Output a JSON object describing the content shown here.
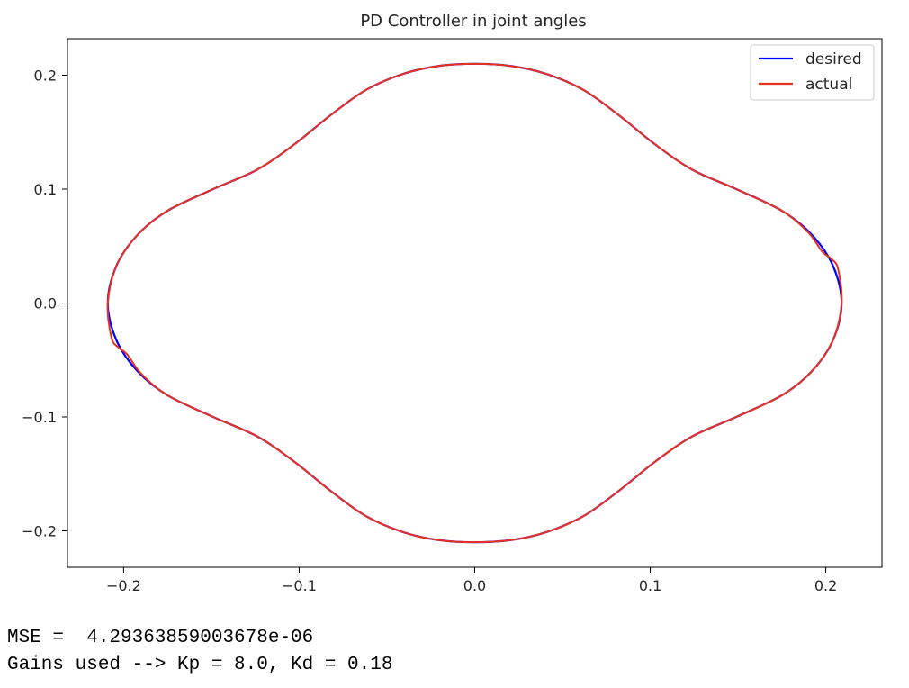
{
  "chart_data": {
    "type": "line",
    "title": "PD Controller in joint angles",
    "xlabel": "",
    "ylabel": "",
    "xlim": [
      -0.232,
      0.232
    ],
    "ylim": [
      -0.232,
      0.232
    ],
    "xticks": [
      -0.2,
      -0.1,
      0.0,
      0.1,
      0.2
    ],
    "xtick_labels": [
      "−0.2",
      "−0.1",
      "0.0",
      "0.1",
      "0.2"
    ],
    "yticks": [
      0.2,
      0.1,
      0.0,
      -0.1,
      -0.2
    ],
    "ytick_labels": [
      "0.2",
      "0.1",
      "0.0",
      "−0.1",
      "−0.2"
    ],
    "grid": false,
    "legend_position": "top-right",
    "series": [
      {
        "name": "desired",
        "color": "#0000ff",
        "x": [
          0.0,
          0.021,
          0.041,
          0.062,
          0.082,
          0.103,
          0.124,
          0.149,
          0.175,
          0.192,
          0.204,
          0.209,
          0.204,
          0.192,
          0.175,
          0.149,
          0.124,
          0.103,
          0.082,
          0.062,
          0.041,
          0.021,
          0.0,
          -0.021,
          -0.041,
          -0.062,
          -0.082,
          -0.103,
          -0.124,
          -0.149,
          -0.175,
          -0.192,
          -0.204,
          -0.209,
          -0.204,
          -0.192,
          -0.175,
          -0.149,
          -0.124,
          -0.103,
          -0.082,
          -0.062,
          -0.041,
          -0.021,
          0.0
        ],
        "y": [
          0.21,
          0.208,
          0.201,
          0.187,
          0.165,
          0.139,
          0.117,
          0.1,
          0.081,
          0.06,
          0.033,
          0.0,
          -0.033,
          -0.06,
          -0.081,
          -0.1,
          -0.117,
          -0.139,
          -0.165,
          -0.187,
          -0.201,
          -0.208,
          -0.21,
          -0.208,
          -0.201,
          -0.187,
          -0.165,
          -0.139,
          -0.117,
          -0.1,
          -0.081,
          -0.06,
          -0.033,
          0.0,
          0.033,
          0.06,
          0.081,
          0.1,
          0.117,
          0.139,
          0.165,
          0.187,
          0.201,
          0.208,
          0.21
        ]
      },
      {
        "name": "actual",
        "color": "#e8321e",
        "x": [
          0.0,
          0.021,
          0.041,
          0.062,
          0.082,
          0.103,
          0.124,
          0.149,
          0.175,
          0.19,
          0.198,
          0.203,
          0.207,
          0.209,
          0.204,
          0.192,
          0.175,
          0.149,
          0.124,
          0.103,
          0.082,
          0.062,
          0.041,
          0.021,
          0.0,
          -0.021,
          -0.041,
          -0.062,
          -0.082,
          -0.103,
          -0.124,
          -0.149,
          -0.175,
          -0.19,
          -0.198,
          -0.203,
          -0.207,
          -0.209,
          -0.204,
          -0.192,
          -0.175,
          -0.149,
          -0.124,
          -0.103,
          -0.082,
          -0.062,
          -0.041,
          -0.021,
          0.0
        ],
        "y": [
          0.21,
          0.208,
          0.201,
          0.187,
          0.165,
          0.139,
          0.117,
          0.1,
          0.081,
          0.062,
          0.045,
          0.039,
          0.03,
          0.0,
          -0.033,
          -0.06,
          -0.081,
          -0.1,
          -0.117,
          -0.139,
          -0.165,
          -0.187,
          -0.201,
          -0.208,
          -0.21,
          -0.208,
          -0.201,
          -0.187,
          -0.165,
          -0.139,
          -0.117,
          -0.1,
          -0.081,
          -0.062,
          -0.045,
          -0.039,
          -0.03,
          0.0,
          0.033,
          0.06,
          0.081,
          0.1,
          0.117,
          0.139,
          0.165,
          0.187,
          0.201,
          0.208,
          0.21
        ]
      }
    ]
  },
  "output": {
    "mse_text": "MSE =  4.29363859003678e-06",
    "gains_text": "Gains used --> Kp = 8.0, Kd = 0.18"
  }
}
